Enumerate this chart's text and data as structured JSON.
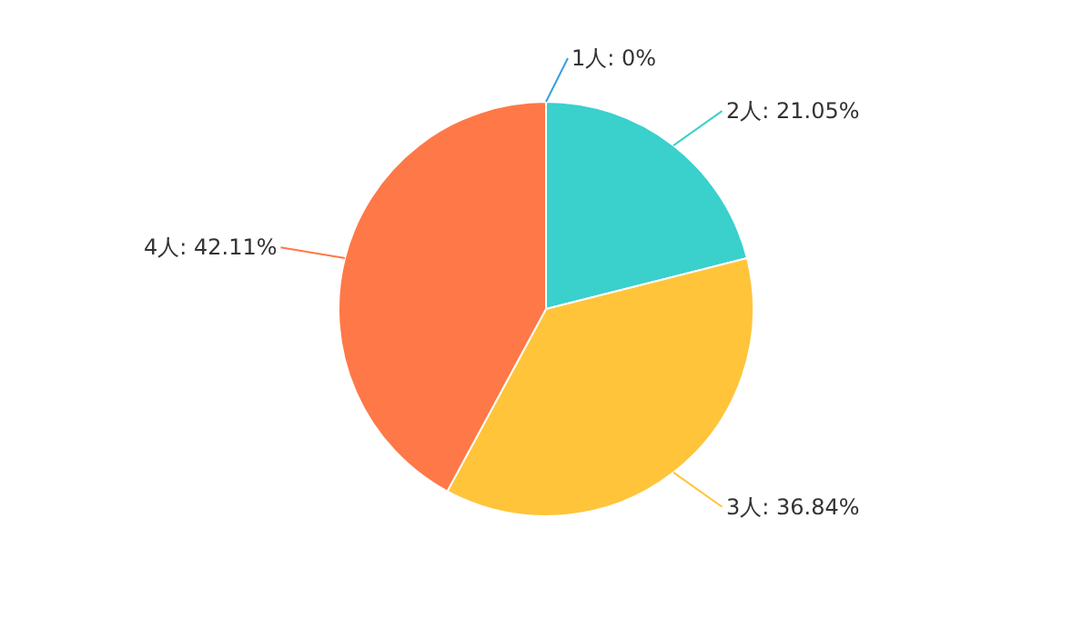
{
  "chart_data": {
    "type": "pie",
    "categories": [
      "1人",
      "2人",
      "3人",
      "4人"
    ],
    "values": [
      0,
      21.05,
      36.84,
      42.11
    ],
    "value_labels": [
      ": 0%",
      ": 21.05%",
      ": 36.84%",
      ": 42.11%"
    ],
    "colors": [
      "#3a9fdc",
      "#3ad0cc",
      "#ffc43a",
      "#ff7847"
    ],
    "legend": false
  }
}
